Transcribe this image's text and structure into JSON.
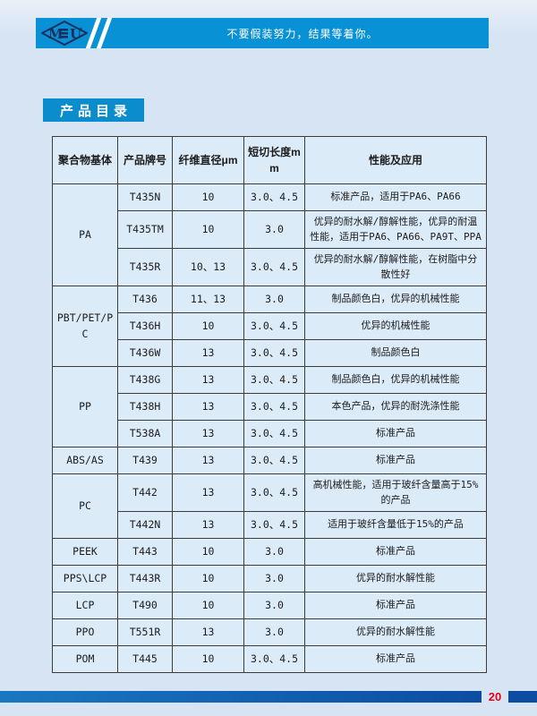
{
  "header": {
    "motto": "不要假装努力，结果等着你。",
    "band_color": "#0991d5",
    "logo": {
      "letter_left": "M",
      "letter_right": "U",
      "registered_mark": "®"
    }
  },
  "section": {
    "title": "产品目录",
    "title_bg": "#0a8ccd"
  },
  "table": {
    "headers": [
      "聚合物基体",
      "产品牌号",
      "纤维直径μm",
      "短切长度mm",
      "性能及应用"
    ],
    "groups": [
      {
        "base": "PA",
        "rows": [
          {
            "grade": "T435N",
            "diameter": "10",
            "length": "3.0、4.5",
            "desc": "标准产品，适用于PA6、PA66"
          },
          {
            "grade": "T435TM",
            "diameter": "10",
            "length": "3.0",
            "desc": "优异的耐水解/醇解性能，优异的耐温性能，适用于PA6、PA66、PA9T、PPA"
          },
          {
            "grade": "T435R",
            "diameter": "10、13",
            "length": "3.0、4.5",
            "desc": "优异的耐水解/醇解性能，在树脂中分散性好"
          }
        ]
      },
      {
        "base": "PBT/PET/PC",
        "rows": [
          {
            "grade": "T436",
            "diameter": "11、13",
            "length": "3.0",
            "desc": "制品颜色白，优异的机械性能"
          },
          {
            "grade": "T436H",
            "diameter": "10",
            "length": "3.0、4.5",
            "desc": "优异的机械性能"
          },
          {
            "grade": "T436W",
            "diameter": "13",
            "length": "3.0、4.5",
            "desc": "制品颜色白"
          }
        ]
      },
      {
        "base": "PP",
        "rows": [
          {
            "grade": "T438G",
            "diameter": "13",
            "length": "3.0、4.5",
            "desc": "制品颜色白，优异的机械性能"
          },
          {
            "grade": "T438H",
            "diameter": "13",
            "length": "3.0、4.5",
            "desc": "本色产品，优异的耐洗涤性能"
          },
          {
            "grade": "T538A",
            "diameter": "13",
            "length": "3.0、4.5",
            "desc": "标准产品"
          }
        ]
      },
      {
        "base": "ABS/AS",
        "rows": [
          {
            "grade": "T439",
            "diameter": "13",
            "length": "3.0、4.5",
            "desc": "标准产品"
          }
        ]
      },
      {
        "base": "PC",
        "rows": [
          {
            "grade": "T442",
            "diameter": "13",
            "length": "3.0、4.5",
            "desc": "高机械性能，适用于玻纤含量高于15%的产品"
          },
          {
            "grade": "T442N",
            "diameter": "13",
            "length": "3.0、4.5",
            "desc": "适用于玻纤含量低于15%的产品"
          }
        ]
      },
      {
        "base": "PEEK",
        "rows": [
          {
            "grade": "T443",
            "diameter": "10",
            "length": "3.0",
            "desc": "标准产品"
          }
        ]
      },
      {
        "base": "PPS\\LCP",
        "rows": [
          {
            "grade": "T443R",
            "diameter": "10",
            "length": "3.0",
            "desc": "优异的耐水解性能"
          }
        ]
      },
      {
        "base": "LCP",
        "rows": [
          {
            "grade": "T490",
            "diameter": "10",
            "length": "3.0",
            "desc": "标准产品"
          }
        ]
      },
      {
        "base": "PPO",
        "rows": [
          {
            "grade": "T551R",
            "diameter": "13",
            "length": "3.0",
            "desc": "优异的耐水解性能"
          }
        ]
      },
      {
        "base": "POM",
        "rows": [
          {
            "grade": "T445",
            "diameter": "10",
            "length": "3.0、4.5",
            "desc": "标准产品"
          }
        ]
      }
    ]
  },
  "footer": {
    "page_number": "20",
    "page_number_color": "#e60018",
    "bar_color_left": "#1a78c0",
    "bar_color_right": "#0b4da2"
  }
}
